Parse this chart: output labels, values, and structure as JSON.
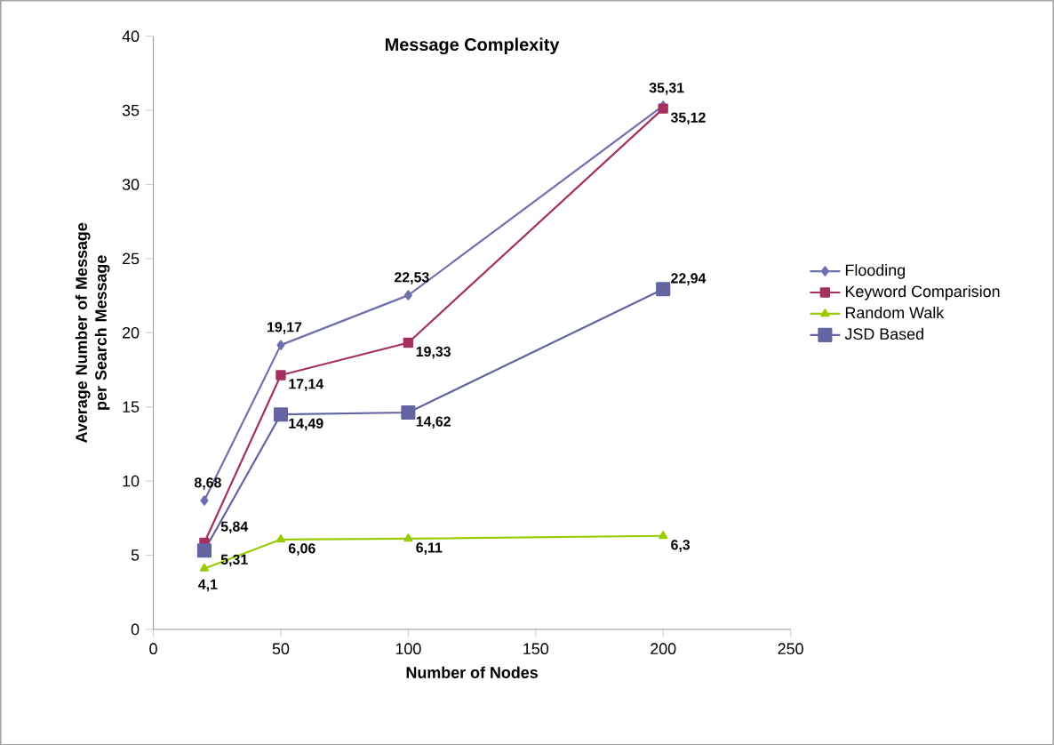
{
  "chart_data": {
    "type": "line",
    "title": "Message Complexity",
    "xlabel": "Number of Nodes",
    "ylabel": "Average Number of Message per Search Message",
    "x": [
      20,
      50,
      100,
      200
    ],
    "series": [
      {
        "name": "Flooding",
        "color": "#6f6fae",
        "marker": "diamond",
        "values": [
          8.68,
          19.17,
          22.53,
          35.31
        ],
        "value_labels": [
          "8,68",
          "19,17",
          "22,53",
          "35,31"
        ]
      },
      {
        "name": "Keyword Comparision",
        "color": "#a3305f",
        "marker": "square",
        "values": [
          5.84,
          17.14,
          19.33,
          35.12
        ],
        "value_labels": [
          "5,84",
          "17,14",
          "19,33",
          "35,12"
        ]
      },
      {
        "name": "Random Walk",
        "color": "#99cc00",
        "marker": "triangle",
        "values": [
          4.1,
          6.06,
          6.11,
          6.3
        ],
        "value_labels": [
          "4,1",
          "6,06",
          "6,11",
          "6,3"
        ]
      },
      {
        "name": "JSD Based",
        "color": "#6464a0",
        "marker": "square",
        "values": [
          5.31,
          14.49,
          14.62,
          22.94
        ],
        "value_labels": [
          "5,31",
          "14,49",
          "14,62",
          "22,94"
        ]
      }
    ],
    "xlim": [
      0,
      250
    ],
    "ylim": [
      0,
      40
    ],
    "xticks": [
      0,
      50,
      100,
      150,
      200,
      250
    ],
    "yticks": [
      0,
      5,
      10,
      15,
      20,
      25,
      30,
      35,
      40
    ],
    "grid": false,
    "legend": "right",
    "line_style": "solid"
  }
}
